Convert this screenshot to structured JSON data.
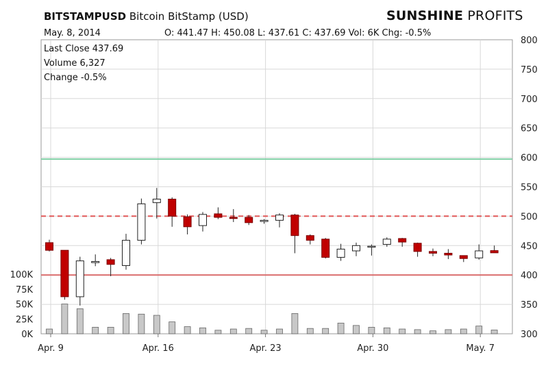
{
  "header": {
    "symbol": "BITSTAMPUSD",
    "description": "Bitcoin  BitStamp  (USD)",
    "brand_bold": "SUNSHINE",
    "brand_light": " PROFITS",
    "date": "May. 8, 2014",
    "ohlc_line": "O: 441.47  H: 450.08  L: 437.61  C: 437.69  Vol: 6K  Chg: -0.5%"
  },
  "info_box": {
    "last_close": "Last Close  437.69",
    "volume": "Volume  6,327",
    "change": "Change  -0.5%"
  },
  "colors": {
    "up_fill": "#ffffff",
    "down_fill": "#c00000",
    "candle_outline": "#222222",
    "volume_bar": "#c8c8c8",
    "resistance_line": "#7fcfa4",
    "dashed_line": "#e05555",
    "support_line": "#d96a6a",
    "grid": "#d8d8d8"
  },
  "chart_data": {
    "type": "candlestick",
    "price_axis": {
      "ylim": [
        300,
        800
      ],
      "ticks": [
        300,
        350,
        400,
        450,
        500,
        550,
        600,
        650,
        700,
        750,
        800
      ],
      "labels": [
        "300",
        "350",
        "400",
        "450",
        "500",
        "550",
        "600",
        "650",
        "700",
        "750",
        "800"
      ]
    },
    "volume_axis": {
      "ylim": [
        0,
        100000
      ],
      "ticks": [
        0,
        25000,
        50000,
        75000,
        100000
      ],
      "labels": [
        "0K",
        "25K",
        "50K",
        "75K",
        "100K"
      ]
    },
    "x_labels": [
      {
        "day": 0,
        "text": "Apr. 9"
      },
      {
        "day": 7,
        "text": "Apr. 16"
      },
      {
        "day": 14,
        "text": "Apr. 23"
      },
      {
        "day": 21,
        "text": "Apr. 30"
      },
      {
        "day": 28,
        "text": "May. 7"
      }
    ],
    "candles": [
      {
        "date": "Apr 9",
        "open": 455,
        "high": 460,
        "low": 440,
        "close": 442,
        "volume": 8000
      },
      {
        "date": "Apr 10",
        "open": 442,
        "high": 442,
        "low": 358,
        "close": 363,
        "volume": 50000
      },
      {
        "date": "Apr 11",
        "open": 363,
        "high": 431,
        "low": 348,
        "close": 424,
        "volume": 42000
      },
      {
        "date": "Apr 12",
        "open": 421,
        "high": 435,
        "low": 415,
        "close": 423,
        "volume": 11000
      },
      {
        "date": "Apr 13",
        "open": 426,
        "high": 429,
        "low": 398,
        "close": 418,
        "volume": 11000
      },
      {
        "date": "Apr 14",
        "open": 416,
        "high": 470,
        "low": 409,
        "close": 459,
        "volume": 34000
      },
      {
        "date": "Apr 15",
        "open": 459,
        "high": 530,
        "low": 452,
        "close": 521,
        "volume": 33000
      },
      {
        "date": "Apr 16",
        "open": 523,
        "high": 548,
        "low": 496,
        "close": 529,
        "volume": 31000
      },
      {
        "date": "Apr 17",
        "open": 529,
        "high": 532,
        "low": 482,
        "close": 500,
        "volume": 20000
      },
      {
        "date": "Apr 18",
        "open": 499,
        "high": 503,
        "low": 469,
        "close": 482,
        "volume": 12000
      },
      {
        "date": "Apr 19",
        "open": 484,
        "high": 507,
        "low": 474,
        "close": 503,
        "volume": 10000
      },
      {
        "date": "Apr 20",
        "open": 504,
        "high": 515,
        "low": 495,
        "close": 498,
        "volume": 6000
      },
      {
        "date": "Apr 21",
        "open": 498,
        "high": 512,
        "low": 490,
        "close": 496,
        "volume": 8000
      },
      {
        "date": "Apr 22",
        "open": 498,
        "high": 502,
        "low": 485,
        "close": 489,
        "volume": 9000
      },
      {
        "date": "Apr 23",
        "open": 491,
        "high": 495,
        "low": 487,
        "close": 493,
        "volume": 6000
      },
      {
        "date": "Apr 24",
        "open": 493,
        "high": 505,
        "low": 481,
        "close": 502,
        "volume": 8000
      },
      {
        "date": "Apr 25",
        "open": 502,
        "high": 504,
        "low": 437,
        "close": 467,
        "volume": 34000
      },
      {
        "date": "Apr 26",
        "open": 467,
        "high": 469,
        "low": 452,
        "close": 459,
        "volume": 9000
      },
      {
        "date": "Apr 27",
        "open": 461,
        "high": 463,
        "low": 428,
        "close": 430,
        "volume": 9000
      },
      {
        "date": "Apr 28",
        "open": 430,
        "high": 453,
        "low": 424,
        "close": 444,
        "volume": 18000
      },
      {
        "date": "Apr 29",
        "open": 441,
        "high": 455,
        "low": 432,
        "close": 450,
        "volume": 14000
      },
      {
        "date": "Apr 30",
        "open": 448,
        "high": 452,
        "low": 433,
        "close": 449,
        "volume": 11000
      },
      {
        "date": "May 1",
        "open": 452,
        "high": 464,
        "low": 448,
        "close": 461,
        "volume": 10000
      },
      {
        "date": "May 2",
        "open": 462,
        "high": 463,
        "low": 448,
        "close": 456,
        "volume": 8000
      },
      {
        "date": "May 3",
        "open": 454,
        "high": 455,
        "low": 431,
        "close": 440,
        "volume": 7000
      },
      {
        "date": "May 4",
        "open": 440,
        "high": 445,
        "low": 432,
        "close": 437,
        "volume": 5000
      },
      {
        "date": "May 5",
        "open": 437,
        "high": 444,
        "low": 427,
        "close": 434,
        "volume": 7000
      },
      {
        "date": "May 6",
        "open": 433,
        "high": 433,
        "low": 422,
        "close": 428,
        "volume": 8000
      },
      {
        "date": "May 7",
        "open": 429,
        "high": 452,
        "low": 426,
        "close": 441,
        "volume": 13000
      },
      {
        "date": "May 8",
        "open": 441.47,
        "high": 450.08,
        "low": 437.61,
        "close": 437.69,
        "volume": 6327
      }
    ],
    "horizontal_lines": [
      {
        "price": 597,
        "style": "solid",
        "color_key": "resistance_line"
      },
      {
        "price": 500,
        "style": "dashed",
        "color_key": "dashed_line"
      },
      {
        "price": 400,
        "style": "solid",
        "color_key": "support_line"
      }
    ],
    "grid": true
  }
}
